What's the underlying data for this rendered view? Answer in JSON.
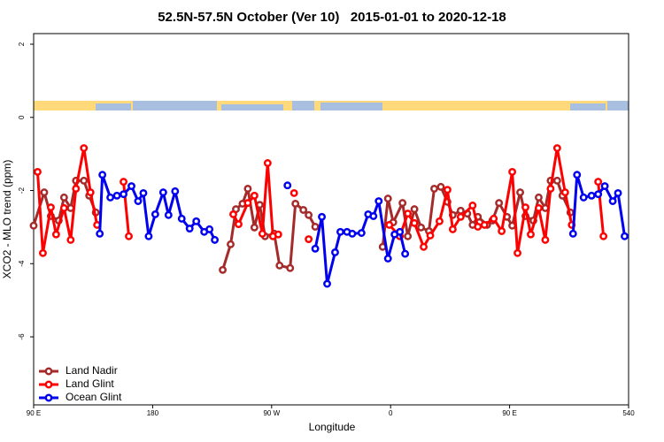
{
  "chart_data": {
    "type": "line",
    "title": "52.5N-57.5N October (Ver 10)   2015-01-01 to 2020-12-18",
    "xlabel": "Longitude",
    "ylabel": "XCO2 - MLO trend (ppm)",
    "xlim": [
      90,
      540
    ],
    "ylim": [
      -7.86,
      2.29
    ],
    "xticks": [
      {
        "value": 90,
        "label": "90 E"
      },
      180,
      {
        "value": 270,
        "label": "90 W"
      },
      {
        "value": 360,
        "label": "0"
      },
      {
        "value": 450,
        "label": "90 E"
      },
      540
    ],
    "yticks": [
      2,
      0,
      -2,
      -4,
      -6
    ],
    "legend": "lower left",
    "series": [
      {
        "name": "Land Nadir",
        "color": "#a52a2a",
        "x": [
          90,
          98,
          103,
          109,
          113,
          118,
          122,
          128,
          132,
          137,
          null,
          233,
          239,
          243,
          248,
          252,
          257,
          261,
          265,
          272,
          276,
          284,
          288,
          294,
          298,
          303,
          null,
          354,
          358,
          362,
          369,
          373,
          378,
          383,
          389,
          393,
          398,
          403,
          407,
          413,
          418,
          422,
          426,
          433,
          437,
          442,
          448,
          452,
          458,
          462,
          468,
          472,
          477,
          481,
          486,
          490,
          496
        ],
        "values": [
          -2.96,
          -2.05,
          -2.7,
          -2.82,
          -2.19,
          -2.48,
          -1.73,
          -1.73,
          -2.14,
          -2.6,
          null,
          -4.17,
          -3.47,
          -2.51,
          -2.36,
          -1.95,
          -3.01,
          -2.39,
          -3.25,
          -3.18,
          -4.05,
          -4.12,
          -2.36,
          -2.53,
          -2.67,
          -2.99,
          null,
          -3.54,
          -2.22,
          -2.87,
          -2.34,
          -3.25,
          -2.51,
          -3.01,
          -3.11,
          -1.95,
          -1.9,
          -2.31,
          -2.67,
          -2.55,
          -2.63,
          -2.94,
          -2.72,
          -2.94,
          -2.82,
          -2.34,
          -2.72,
          -2.96,
          -2.05,
          -2.7,
          -2.82,
          -2.19,
          -2.48,
          -1.73,
          -1.73,
          -2.14,
          -2.6
        ]
      },
      {
        "name": "Land Glint",
        "color": "#ff0000",
        "x": [
          93,
          97,
          103,
          107,
          113,
          118,
          122,
          128,
          133,
          138,
          null,
          158,
          162,
          null,
          241,
          245,
          252,
          257,
          263,
          267,
          271,
          275,
          null,
          287,
          null,
          298,
          null,
          359,
          367,
          373,
          378,
          385,
          390,
          397,
          403,
          407,
          413,
          422,
          426,
          431,
          438,
          444,
          452,
          456,
          462,
          466,
          472,
          477,
          481,
          486,
          492,
          497,
          null,
          517,
          521
        ],
        "values": [
          -1.49,
          -3.71,
          -2.46,
          -3.2,
          -2.48,
          -3.35,
          -1.95,
          -0.84,
          -2.05,
          -2.94,
          null,
          -1.76,
          -3.25,
          null,
          -2.65,
          -2.92,
          -2.34,
          -2.14,
          -3.18,
          -1.25,
          -3.25,
          -3.2,
          null,
          -2.07,
          null,
          -3.33,
          null,
          -2.94,
          -3.25,
          -2.63,
          -2.89,
          -3.54,
          -3.23,
          -2.84,
          -1.98,
          -3.06,
          -2.72,
          -2.41,
          -2.99,
          -2.94,
          -2.77,
          -3.11,
          -1.49,
          -3.71,
          -2.46,
          -3.2,
          -2.48,
          -3.35,
          -1.95,
          -0.84,
          -2.05,
          -2.94,
          null,
          -1.76,
          -3.25
        ]
      },
      {
        "name": "Ocean Glint",
        "color": "#0000ee",
        "x": [
          140,
          142,
          148,
          153,
          158,
          164,
          169,
          173,
          177,
          182,
          188,
          192,
          197,
          202,
          208,
          213,
          219,
          223,
          227,
          null,
          282,
          null,
          303,
          308,
          312,
          318,
          322,
          327,
          331,
          338,
          343,
          347,
          351,
          358,
          363,
          367,
          371,
          null,
          498,
          501,
          506,
          512,
          517,
          522,
          528,
          532,
          537
        ],
        "values": [
          -3.18,
          -1.57,
          -2.19,
          -2.14,
          -2.1,
          -1.88,
          -2.29,
          -2.07,
          -3.25,
          -2.65,
          -2.05,
          -2.67,
          -2.02,
          -2.77,
          -3.04,
          -2.84,
          -3.13,
          -3.06,
          -3.35,
          null,
          -1.86,
          null,
          -3.59,
          -2.72,
          -4.55,
          -3.69,
          -3.13,
          -3.13,
          -3.18,
          -3.16,
          -2.65,
          -2.7,
          -2.29,
          -3.86,
          -3.2,
          -3.13,
          -3.73,
          null,
          -3.18,
          -1.57,
          -2.19,
          -2.14,
          -2.1,
          -1.88,
          -2.29,
          -2.07,
          -3.25
        ]
      }
    ]
  }
}
